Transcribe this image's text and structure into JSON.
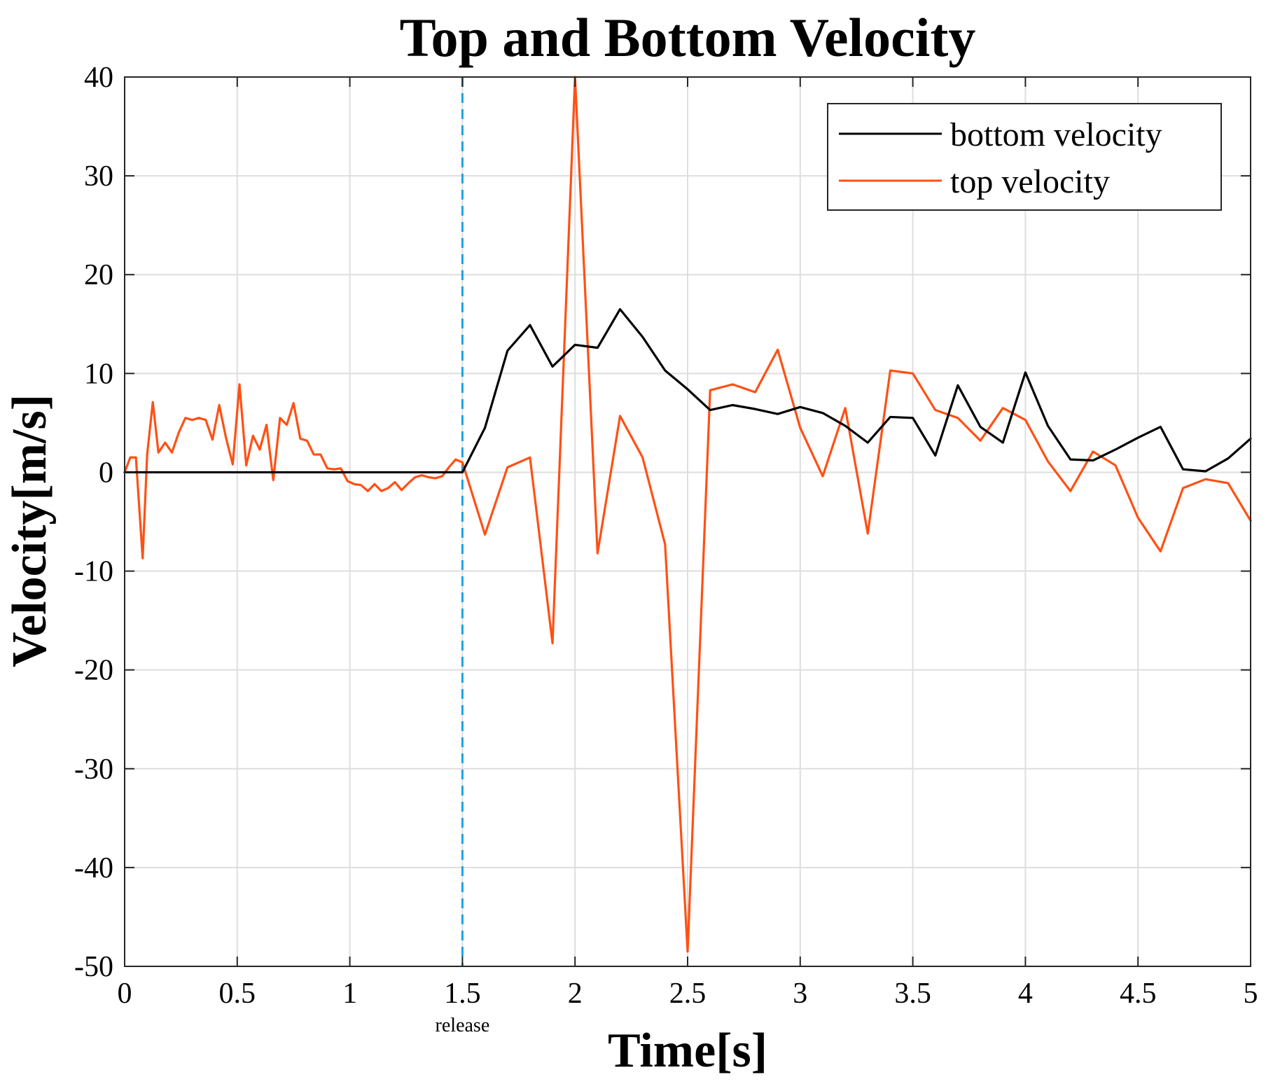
{
  "chart_data": {
    "type": "line",
    "title": "Top and Bottom Velocity",
    "xlabel": "Time[s]",
    "ylabel": "Velocity[m/s]",
    "xlim": [
      0,
      5
    ],
    "ylim": [
      -50,
      40
    ],
    "grid": true,
    "legend_position": "top-right",
    "x_ticks": [
      0,
      0.5,
      1,
      1.5,
      2,
      2.5,
      3,
      3.5,
      4,
      4.5,
      5
    ],
    "x_tick_labels": [
      "0",
      "0.5",
      "1",
      "1.5",
      "2",
      "2.5",
      "3",
      "3.5",
      "4",
      "4.5",
      "5"
    ],
    "y_ticks": [
      40,
      30,
      20,
      10,
      0,
      -10,
      -20,
      -30,
      -40,
      -50
    ],
    "y_tick_labels": [
      "40",
      "30",
      "20",
      "10",
      "0",
      "-10",
      "-20",
      "-30",
      "-40",
      "-50"
    ],
    "annotations": [
      {
        "type": "vline",
        "x": 1.5,
        "label": "release",
        "color": "#1aa3e0",
        "style": "dashed"
      }
    ],
    "series": [
      {
        "name": "bottom velocity",
        "color": "#000000",
        "x": [
          0,
          1.5,
          1.6,
          1.7,
          1.8,
          1.9,
          2.0,
          2.1,
          2.2,
          2.3,
          2.4,
          2.5,
          2.6,
          2.7,
          2.8,
          2.9,
          3.0,
          3.1,
          3.2,
          3.3,
          3.4,
          3.5,
          3.6,
          3.7,
          3.8,
          3.9,
          4.0,
          4.1,
          4.2,
          4.3,
          4.4,
          4.5,
          4.6,
          4.7,
          4.8,
          4.9,
          5.0
        ],
        "values": [
          0,
          0,
          4.5,
          12.3,
          14.9,
          10.7,
          12.9,
          12.6,
          16.5,
          13.7,
          10.3,
          8.4,
          6.3,
          6.8,
          6.4,
          5.9,
          6.6,
          6.0,
          4.7,
          3.0,
          5.6,
          5.5,
          1.7,
          8.8,
          4.6,
          3.0,
          10.1,
          4.7,
          1.3,
          1.2,
          2.3,
          3.5,
          4.6,
          0.3,
          0.1,
          1.4,
          3.4
        ]
      },
      {
        "name": "top velocity",
        "color": "#ff5014",
        "x": [
          0,
          0.025,
          0.05,
          0.08,
          0.1,
          0.125,
          0.15,
          0.18,
          0.21,
          0.24,
          0.27,
          0.3,
          0.33,
          0.36,
          0.39,
          0.42,
          0.45,
          0.48,
          0.51,
          0.54,
          0.57,
          0.6,
          0.63,
          0.66,
          0.69,
          0.72,
          0.75,
          0.78,
          0.81,
          0.84,
          0.87,
          0.9,
          0.93,
          0.96,
          0.99,
          1.02,
          1.05,
          1.08,
          1.11,
          1.14,
          1.17,
          1.2,
          1.23,
          1.26,
          1.29,
          1.32,
          1.35,
          1.38,
          1.41,
          1.44,
          1.47,
          1.5,
          1.6,
          1.7,
          1.8,
          1.9,
          2.0,
          2.1,
          2.2,
          2.3,
          2.4,
          2.5,
          2.6,
          2.7,
          2.8,
          2.9,
          3.0,
          3.1,
          3.2,
          3.3,
          3.4,
          3.5,
          3.6,
          3.7,
          3.8,
          3.9,
          4.0,
          4.1,
          4.2,
          4.3,
          4.4,
          4.5,
          4.6,
          4.7,
          4.8,
          4.9,
          5.0
        ],
        "values": [
          0,
          1.5,
          1.5,
          -8.7,
          1.8,
          7.1,
          2.0,
          3.0,
          2.0,
          4.0,
          5.5,
          5.3,
          5.5,
          5.3,
          3.3,
          6.8,
          3.5,
          0.8,
          8.9,
          0.7,
          3.7,
          2.3,
          4.8,
          -0.8,
          5.5,
          4.8,
          7.0,
          3.4,
          3.2,
          1.8,
          1.8,
          0.4,
          0.3,
          0.4,
          -0.9,
          -1.2,
          -1.3,
          -1.9,
          -1.2,
          -1.9,
          -1.6,
          -1.0,
          -1.8,
          -1.1,
          -0.5,
          -0.3,
          -0.5,
          -0.6,
          -0.4,
          0.5,
          1.3,
          1.0,
          -6.3,
          0.5,
          1.5,
          -17.3,
          40.0,
          -8.2,
          5.7,
          1.5,
          -7.3,
          -48.5,
          8.3,
          8.9,
          8.1,
          12.4,
          4.5,
          -0.4,
          6.5,
          -6.2,
          10.3,
          10.0,
          6.3,
          5.5,
          3.2,
          6.5,
          5.3,
          1.1,
          -1.9,
          2.1,
          0.7,
          -4.6,
          -8.0,
          -1.6,
          -0.7,
          -1.1,
          -4.9
        ]
      }
    ]
  }
}
